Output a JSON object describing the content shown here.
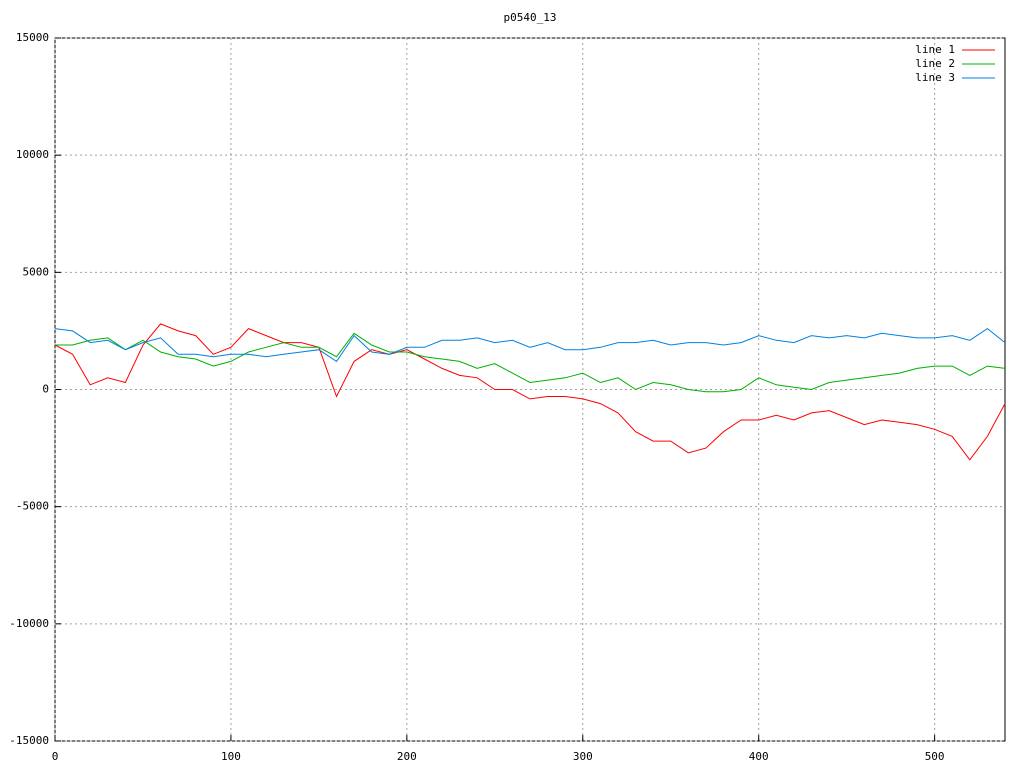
{
  "chart_data": {
    "type": "line",
    "title": "p0540_13",
    "x": [
      0,
      10,
      20,
      30,
      40,
      50,
      60,
      70,
      80,
      90,
      100,
      110,
      120,
      130,
      140,
      150,
      160,
      170,
      180,
      190,
      200,
      210,
      220,
      230,
      240,
      250,
      260,
      270,
      280,
      290,
      300,
      310,
      320,
      330,
      340,
      350,
      360,
      370,
      380,
      390,
      400,
      410,
      420,
      430,
      440,
      450,
      460,
      470,
      480,
      490,
      500,
      510,
      520,
      530,
      540
    ],
    "series": [
      {
        "name": "line 1",
        "color": "#ff0000",
        "values": [
          1900,
          1500,
          200,
          500,
          300,
          1900,
          2800,
          2500,
          2300,
          1500,
          1800,
          2600,
          2300,
          2000,
          2000,
          1800,
          -300,
          1200,
          1700,
          1500,
          1700,
          1300,
          900,
          600,
          500,
          0,
          0,
          -400,
          -300,
          -300,
          -400,
          -600,
          -1000,
          -1800,
          -2200,
          -2200,
          -2700,
          -2500,
          -1800,
          -1300,
          -1300,
          -1100,
          -1300,
          -1000,
          -900,
          -1200,
          -1500,
          -1300,
          -1400,
          -1500,
          -1700,
          -2000,
          -3000,
          -2000,
          -600
        ]
      },
      {
        "name": "line 2",
        "color": "#00b000",
        "values": [
          1900,
          1900,
          2100,
          2200,
          1700,
          2100,
          1600,
          1400,
          1300,
          1000,
          1200,
          1600,
          1800,
          2000,
          1800,
          1800,
          1400,
          2400,
          1900,
          1600,
          1600,
          1400,
          1300,
          1200,
          900,
          1100,
          700,
          300,
          400,
          500,
          700,
          300,
          500,
          0,
          300,
          200,
          0,
          -100,
          -100,
          0,
          500,
          200,
          100,
          0,
          300,
          400,
          500,
          600,
          700,
          900,
          1000,
          1000,
          600,
          1000,
          900
        ]
      },
      {
        "name": "line 3",
        "color": "#0080e0",
        "values": [
          2600,
          2500,
          2000,
          2100,
          1700,
          2000,
          2200,
          1500,
          1500,
          1400,
          1500,
          1500,
          1400,
          1500,
          1600,
          1700,
          1200,
          2300,
          1600,
          1500,
          1800,
          1800,
          2100,
          2100,
          2200,
          2000,
          2100,
          1800,
          2000,
          1700,
          1700,
          1800,
          2000,
          2000,
          2100,
          1900,
          2000,
          2000,
          1900,
          2000,
          2300,
          2100,
          2000,
          2300,
          2200,
          2300,
          2200,
          2400,
          2300,
          2200,
          2200,
          2300,
          2100,
          2600,
          2000
        ]
      }
    ],
    "xlim": [
      0,
      540
    ],
    "xticks": [
      0,
      100,
      200,
      300,
      400,
      500
    ],
    "ylim": [
      -15000,
      15000
    ],
    "yticks": [
      -15000,
      -10000,
      -5000,
      0,
      5000,
      10000,
      15000
    ],
    "grid": true,
    "legend": "top-right"
  }
}
